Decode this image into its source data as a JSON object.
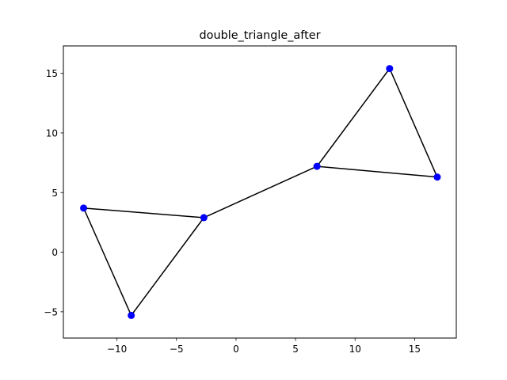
{
  "chart_data": {
    "type": "line",
    "title": "double_triangle_after",
    "xlabel": "",
    "ylabel": "",
    "xlim": [
      -14.5,
      18.5
    ],
    "ylim": [
      -7.2,
      17.3
    ],
    "xticks": [
      -10,
      -5,
      0,
      5,
      10,
      15
    ],
    "yticks": [
      -5,
      0,
      5,
      10,
      15
    ],
    "xtick_labels": [
      "−10",
      "−5",
      "0",
      "5",
      "10",
      "15"
    ],
    "ytick_labels": [
      "−5",
      "0",
      "5",
      "10",
      "15"
    ],
    "grid": false,
    "line_color": "#000000",
    "marker_color": "#0000ff",
    "points": [
      {
        "x": -12.8,
        "y": 3.7
      },
      {
        "x": -8.8,
        "y": -5.3
      },
      {
        "x": -2.7,
        "y": 2.9
      },
      {
        "x": 6.8,
        "y": 7.2
      },
      {
        "x": 12.9,
        "y": 15.4
      },
      {
        "x": 16.9,
        "y": 6.3
      }
    ],
    "edges": [
      [
        0,
        1
      ],
      [
        1,
        2
      ],
      [
        2,
        0
      ],
      [
        2,
        3
      ],
      [
        3,
        4
      ],
      [
        4,
        5
      ],
      [
        5,
        3
      ]
    ]
  }
}
